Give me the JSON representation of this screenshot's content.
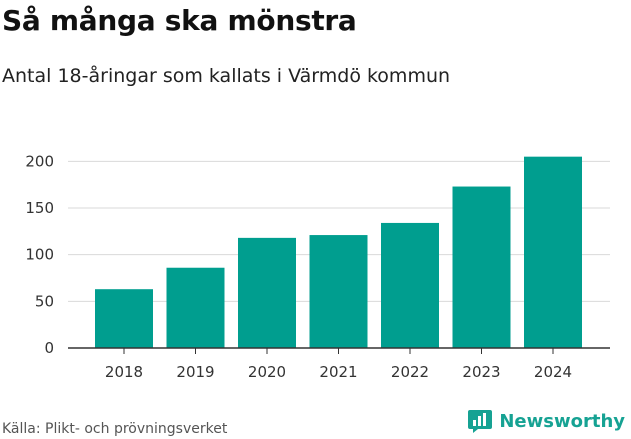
{
  "header": {
    "title": "Så många ska mönstra",
    "subtitle": "Antal 18-åringar som kallats i Värmdö kommun"
  },
  "footer": {
    "source": "Källa: Plikt- och prövningsverket",
    "brand": "Newsworthy",
    "brand_icon": "newsworthy-logo-icon"
  },
  "colors": {
    "bar": "#009e8f",
    "grid": "#d9d9d9",
    "axis": "#333333",
    "brand": "#16a293"
  },
  "chart_data": {
    "type": "bar",
    "title": "Så många ska mönstra",
    "subtitle": "Antal 18-åringar som kallats i Värmdö kommun",
    "xlabel": "",
    "ylabel": "",
    "categories": [
      "2018",
      "2019",
      "2020",
      "2021",
      "2022",
      "2023",
      "2024"
    ],
    "values": [
      63,
      86,
      118,
      121,
      134,
      173,
      205
    ],
    "ylim": [
      0,
      210
    ],
    "yticks": [
      0,
      50,
      100,
      150,
      200
    ],
    "grid": true,
    "legend": "none"
  }
}
